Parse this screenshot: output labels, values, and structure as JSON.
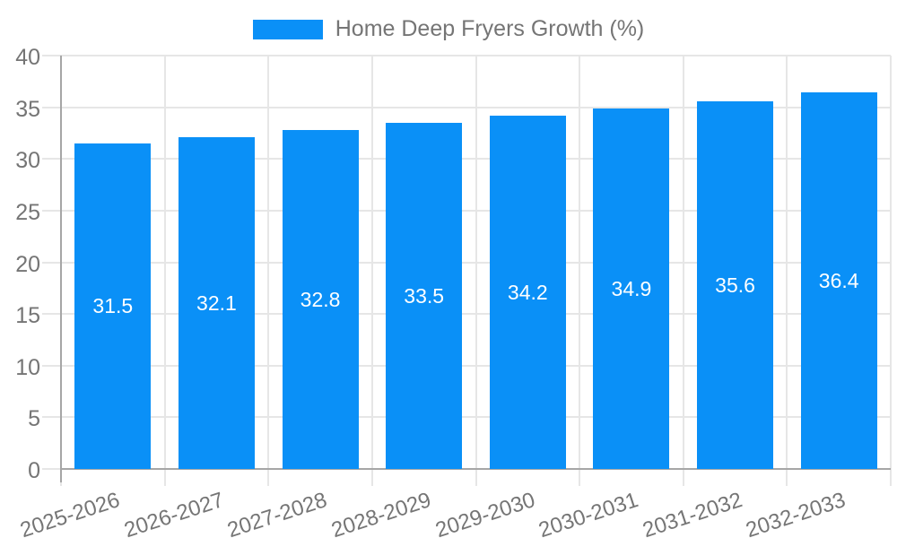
{
  "chart_data": {
    "type": "bar",
    "title": "Home Deep Fryers Growth (%)",
    "categories": [
      "2025-2026",
      "2026-2027",
      "2027-2028",
      "2028-2029",
      "2029-2030",
      "2030-2031",
      "2031-2032",
      "2032-2033"
    ],
    "values": [
      31.5,
      32.1,
      32.8,
      33.5,
      34.2,
      34.9,
      35.6,
      36.4
    ],
    "value_labels": [
      "31.5",
      "32.1",
      "32.8",
      "33.5",
      "34.2",
      "34.9",
      "35.6",
      "36.4"
    ],
    "xlabel": "",
    "ylabel": "",
    "ylim": [
      0,
      40
    ],
    "yticks": [
      0,
      5,
      10,
      15,
      20,
      25,
      30,
      35,
      40
    ],
    "grid": true,
    "legend_position": "top-center",
    "x_label_rotation_deg": -18,
    "colors": {
      "bar": "#0A90F7",
      "bar_value_text": "#FFFFFF",
      "axis_text": "#757575",
      "gridline": "#E6E6E6",
      "axis_line": "#A6A6A6",
      "background": "#FFFFFF"
    }
  }
}
